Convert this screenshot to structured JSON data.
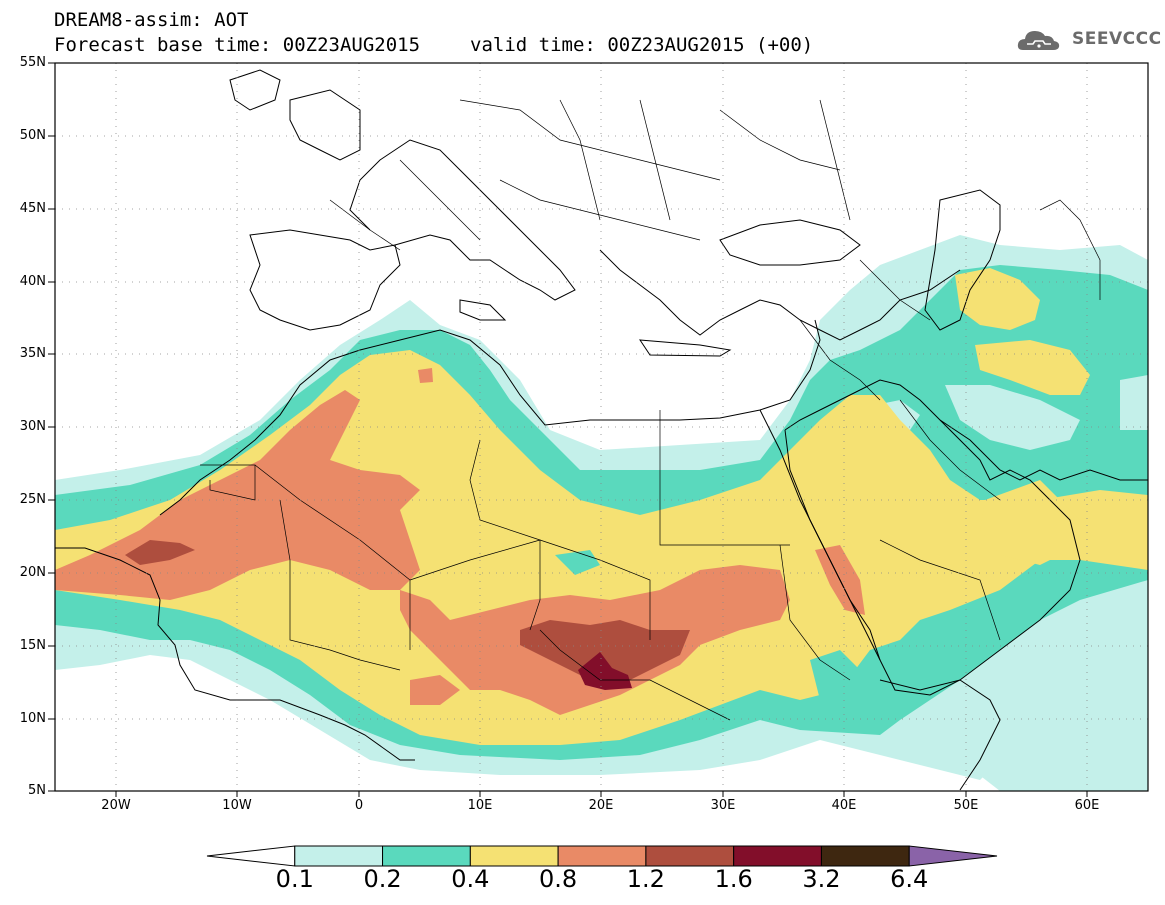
{
  "header": {
    "title": "DREAM8-assim: AOT",
    "base_time": "Forecast base time: 00Z23AUG2015",
    "valid_time": "valid time: 00Z23AUG2015 (+00)"
  },
  "logo": {
    "text": "SEEVCCC",
    "icon": "cloud-icon"
  },
  "axes": {
    "lat_labels": [
      "55N",
      "50N",
      "45N",
      "40N",
      "35N",
      "30N",
      "25N",
      "20N",
      "15N",
      "10N",
      "5N"
    ],
    "lon_labels": [
      "20W",
      "10W",
      "0",
      "10E",
      "20E",
      "30E",
      "40E",
      "50E",
      "60E"
    ],
    "lon_range": [
      -25,
      65
    ],
    "lat_range": [
      5,
      55
    ],
    "grid": "dotted"
  },
  "colorbar": {
    "levels": [
      "0.1",
      "0.2",
      "0.4",
      "0.8",
      "1.2",
      "1.6",
      "3.2",
      "6.4"
    ],
    "colors": [
      "#ffffff",
      "#c4f0ea",
      "#5ad9bd",
      "#f5e173",
      "#e98a66",
      "#ae4e3e",
      "#820e2a",
      "#3e2710",
      "#8a63a8"
    ]
  }
}
